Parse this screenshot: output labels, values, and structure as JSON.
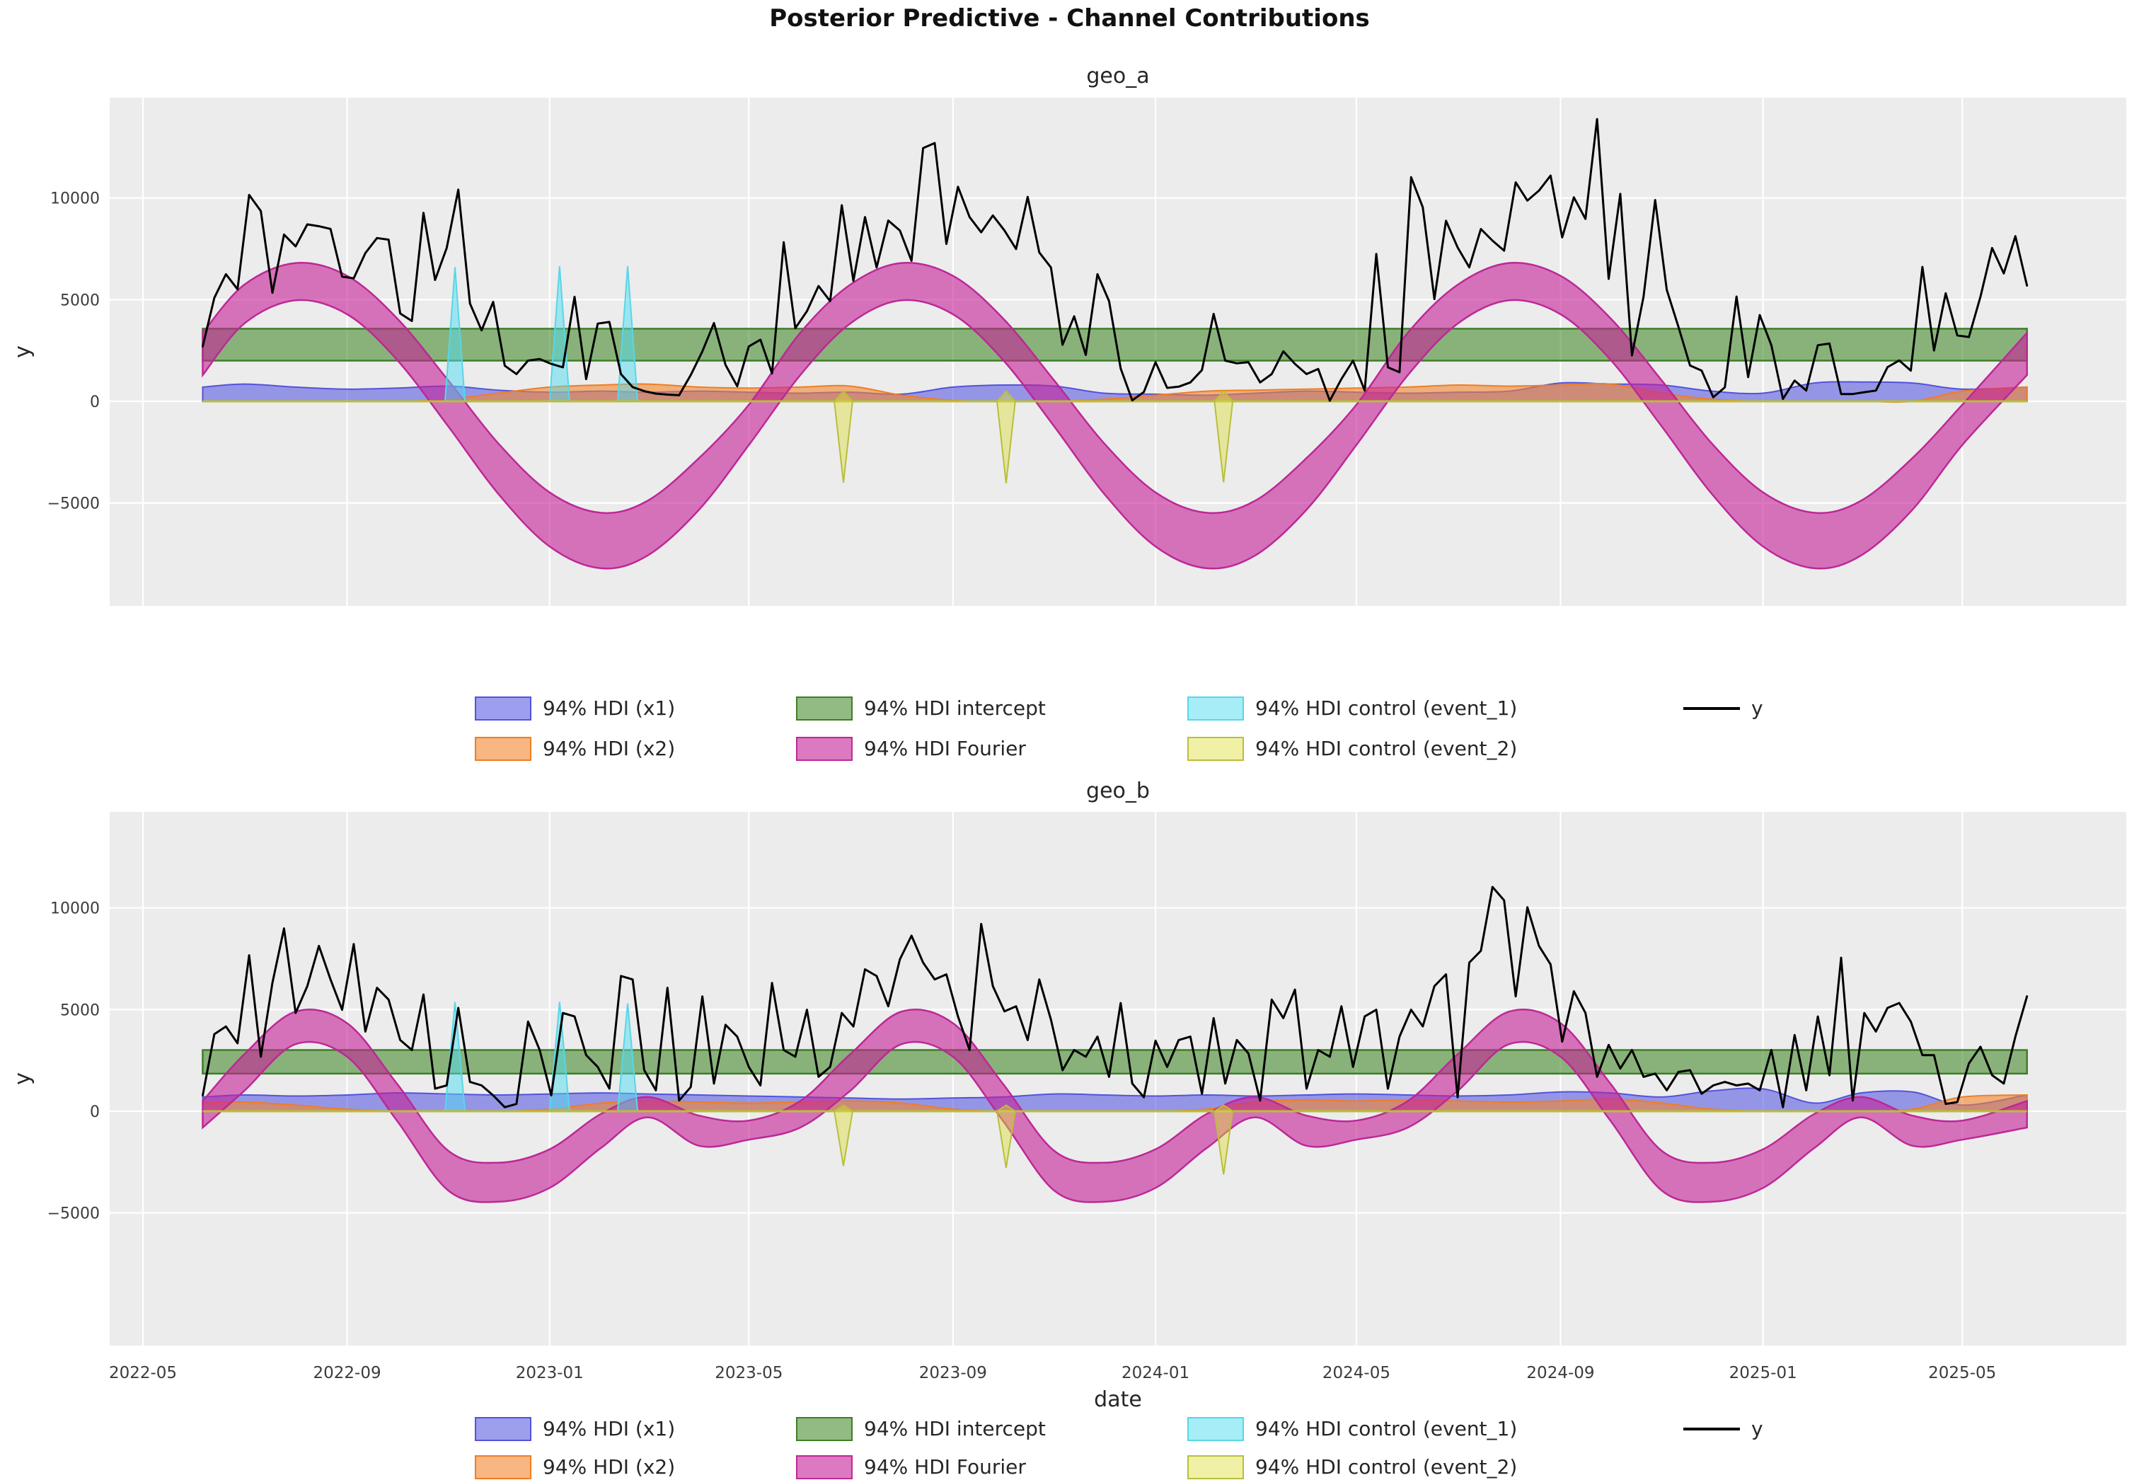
{
  "figure": {
    "title": "Posterior Predictive - Channel Contributions"
  },
  "colors": {
    "plot_bg": "#ececec",
    "grid": "#ffffff",
    "y_line": "#000000",
    "x1_fill": "rgba(62,62,224,0.5)",
    "x1_edge": "#5353dc",
    "x2_fill": "rgba(243,134,46,0.6)",
    "x2_edge": "#ef7e22",
    "intercept_fill": "rgba(56,132,30,0.55)",
    "intercept_edge": "#3f7d28",
    "fourier_fill": "rgba(199,32,152,0.6)",
    "fourier_edge": "#bc2896",
    "event1_fill": "rgba(80,220,240,0.5)",
    "event1_edge": "#57d7e8",
    "event2_fill": "rgba(222,222,60,0.45)",
    "event2_edge": "#b8bf3a"
  },
  "axes": {
    "x": {
      "label": "date",
      "ticks": [
        "2022-05",
        "2022-09",
        "2023-01",
        "2023-05",
        "2023-09",
        "2024-01",
        "2024-05",
        "2024-09",
        "2025-01",
        "2025-05"
      ]
    },
    "y": {
      "label": "y",
      "ticks": [
        10000,
        5000,
        0,
        -5000
      ]
    }
  },
  "months": [
    "2022-06-01",
    "2022-07-01",
    "2022-08-01",
    "2022-09-01",
    "2022-10-01",
    "2022-11-01",
    "2022-12-01",
    "2023-01-01",
    "2023-02-01",
    "2023-03-01",
    "2023-04-01",
    "2023-05-01",
    "2023-06-01",
    "2023-07-01",
    "2023-08-01",
    "2023-09-01",
    "2023-10-01",
    "2023-11-01",
    "2023-12-01",
    "2024-01-01",
    "2024-02-01",
    "2024-03-01",
    "2024-04-01",
    "2024-05-01",
    "2024-06-01",
    "2024-07-01",
    "2024-08-01",
    "2024-09-01",
    "2024-10-01",
    "2024-11-01",
    "2024-12-01",
    "2025-01-01",
    "2025-02-01",
    "2025-03-01",
    "2025-04-01",
    "2025-05-01",
    "2025-06-01"
  ],
  "legend": {
    "rows": [
      [
        {
          "key": "x1",
          "label": "94% HDI (x1)"
        },
        {
          "key": "intercept",
          "label": "94% HDI intercept"
        },
        {
          "key": "event1",
          "label": "94% HDI control (event_1)"
        },
        {
          "key": "y",
          "label": "y",
          "type": "line"
        }
      ],
      [
        {
          "key": "x2",
          "label": "94% HDI (x2)"
        },
        {
          "key": "fourier",
          "label": "94% HDI Fourier"
        },
        {
          "key": "event2",
          "label": "94% HDI control (event_2)"
        }
      ]
    ]
  },
  "chart_data": [
    {
      "name": "geo_a",
      "type": "line",
      "ylabel": "y",
      "yticks": [
        10000,
        5000,
        0,
        -5000
      ],
      "ylim": [
        -10070,
        14950
      ],
      "y_series": {
        "label": "y",
        "start": "2022-06-06",
        "step_days": 7,
        "values": [
          2700,
          5090,
          6250,
          5510,
          10150,
          9360,
          5340,
          8200,
          7620,
          8700,
          8610,
          8480,
          6130,
          6050,
          7290,
          8030,
          7950,
          4320,
          3950,
          9270,
          5970,
          7540,
          10410,
          4810,
          3490,
          4890,
          1750,
          1340,
          2000,
          2080,
          1840,
          1670,
          5140,
          1090,
          3820,
          3900,
          1340,
          700,
          500,
          380,
          330,
          300,
          1290,
          2450,
          3850,
          1790,
          740,
          2700,
          3030,
          1370,
          7820,
          3600,
          4430,
          5670,
          4930,
          9640,
          5920,
          9060,
          6580,
          8890,
          8400,
          6910,
          12450,
          12700,
          7740,
          10550,
          9060,
          8310,
          9140,
          8400,
          7490,
          10050,
          7320,
          6580,
          2780,
          4180,
          2280,
          6250,
          4930,
          1620,
          50,
          460,
          1920,
          660,
          720,
          930,
          1540,
          4300,
          2000,
          1870,
          1920,
          930,
          1340,
          2460,
          1840,
          1340,
          1590,
          30,
          1100,
          2000,
          530,
          7250,
          1670,
          1430,
          11020,
          9540,
          5030,
          8880,
          7570,
          6590,
          8470,
          7900,
          7410,
          10770,
          9870,
          10360,
          11100,
          8060,
          10030,
          8970,
          13880,
          6020,
          10200,
          2260,
          5150,
          9900,
          5480,
          3660,
          1760,
          1510,
          200,
          690,
          5150,
          1190,
          4240,
          2760,
          120,
          1020,
          530,
          2760,
          2840,
          360,
          360,
          450,
          530,
          1680,
          2010,
          1510,
          6610,
          2500,
          5310,
          3240,
          3160,
          5150,
          7540,
          6290,
          8120,
          5690
        ]
      },
      "bands": {
        "intercept": {
          "label": "94% HDI intercept",
          "lo": 2000,
          "hi": 3570
        },
        "fourier": {
          "label": "94% HDI Fourier",
          "hi": [
            3370,
            5730,
            6800,
            6170,
            4090,
            1020,
            -2060,
            -4480,
            -5480,
            -4890,
            -2790,
            -170,
            3370,
            5730,
            6800,
            6170,
            4090,
            1020,
            -2060,
            -4480,
            -5480,
            -4890,
            -2790,
            -170,
            3370,
            5730,
            6800,
            6170,
            4090,
            1020,
            -2060,
            -4480,
            -5480,
            -4890,
            -2790,
            -170,
            3370
          ],
          "lo": [
            1290,
            3820,
            4970,
            4280,
            2050,
            -1240,
            -4540,
            -7140,
            -8210,
            -7580,
            -5330,
            -2150,
            1290,
            3820,
            4970,
            4280,
            2050,
            -1240,
            -4540,
            -7140,
            -8210,
            -7580,
            -5330,
            -2150,
            1290,
            3820,
            4970,
            4280,
            2050,
            -1240,
            -4540,
            -7140,
            -8210,
            -7580,
            -5330,
            -2150,
            1290
          ]
        },
        "x1": {
          "label": "94% HDI (x1)",
          "hi": [
            700,
            850,
            700,
            600,
            650,
            750,
            550,
            450,
            500,
            450,
            500,
            450,
            400,
            450,
            350,
            700,
            800,
            750,
            400,
            350,
            300,
            400,
            500,
            450,
            400,
            450,
            500,
            900,
            850,
            800,
            500,
            400,
            900,
            950,
            900,
            600,
            700
          ]
        },
        "x2": {
          "label": "94% HDI (x2)",
          "hi": [
            0,
            0,
            0,
            0,
            0,
            100,
            400,
            700,
            800,
            850,
            700,
            650,
            700,
            750,
            300,
            50,
            0,
            0,
            100,
            300,
            500,
            550,
            600,
            650,
            700,
            800,
            750,
            800,
            850,
            400,
            100,
            0,
            0,
            0,
            0,
            500,
            700
          ]
        }
      },
      "events": {
        "event_1": {
          "label": "94% HDI control (event_1)",
          "spikes": [
            {
              "date": "2022-11-05",
              "peak": 6600
            },
            {
              "date": "2023-01-07",
              "peak": 6650
            },
            {
              "date": "2023-02-17",
              "peak": 6650
            }
          ]
        },
        "event_2": {
          "label": "94% HDI control (event_2)",
          "cap": 500,
          "spikes": [
            {
              "date": "2023-06-27",
              "peak": -4000
            },
            {
              "date": "2023-10-03",
              "peak": -4030
            },
            {
              "date": "2024-02-11",
              "peak": -3980
            }
          ]
        }
      }
    },
    {
      "name": "geo_b",
      "type": "line",
      "ylabel": "y",
      "yticks": [
        10000,
        5000,
        0,
        -5000
      ],
      "ylim": [
        -11530,
        14740
      ],
      "y_series": {
        "label": "y",
        "start": "2022-06-06",
        "step_days": 7,
        "values": [
          780,
          3790,
          4170,
          3340,
          7670,
          2680,
          6310,
          8990,
          4830,
          6150,
          8130,
          6480,
          4990,
          8220,
          3920,
          6070,
          5490,
          3500,
          3010,
          5740,
          1110,
          1270,
          5080,
          1440,
          1270,
          780,
          200,
          360,
          4410,
          3010,
          780,
          4830,
          4660,
          2760,
          2180,
          1110,
          6650,
          6480,
          2020,
          1030,
          6070,
          530,
          1190,
          5650,
          1360,
          4250,
          3670,
          2180,
          1270,
          6310,
          3010,
          2680,
          4990,
          1690,
          2180,
          4830,
          4170,
          6980,
          6650,
          5160,
          7470,
          8630,
          7310,
          6480,
          6730,
          4660,
          3010,
          9210,
          6150,
          4910,
          5160,
          3500,
          6480,
          4500,
          2020,
          3010,
          2680,
          3670,
          1690,
          5320,
          1360,
          690,
          3470,
          2180,
          3500,
          3670,
          860,
          4580,
          1360,
          3500,
          2840,
          530,
          5490,
          4580,
          5980,
          1110,
          3010,
          2680,
          5160,
          2180,
          4660,
          4990,
          1110,
          3670,
          4990,
          4170,
          6150,
          6730,
          690,
          7310,
          7890,
          11030,
          10370,
          5650,
          10030,
          8130,
          7220,
          3420,
          5900,
          4830,
          1690,
          3260,
          2100,
          3010,
          1690,
          1850,
          1030,
          1930,
          2020,
          860,
          1270,
          1440,
          1270,
          1360,
          1030,
          3010,
          200,
          3750,
          1030,
          4660,
          1770,
          7550,
          530,
          4830,
          3920,
          5080,
          5320,
          4410,
          2760,
          2760,
          360,
          450,
          2350,
          3170,
          1770,
          1360,
          3670,
          5650
        ]
      },
      "bands": {
        "intercept": {
          "label": "94% HDI intercept",
          "lo": 1850,
          "hi": 3010
        },
        "fourier": {
          "label": "94% HDI Fourier",
          "hi": [
            500,
            2800,
            4900,
            4330,
            1360,
            -1950,
            -2530,
            -1870,
            -130,
            700,
            -215,
            -460,
            500,
            2800,
            4900,
            4330,
            1360,
            -1950,
            -2530,
            -1870,
            -130,
            700,
            -215,
            -460,
            500,
            2800,
            4900,
            4330,
            1360,
            -1950,
            -2530,
            -1870,
            -130,
            700,
            -215,
            -460,
            500
          ],
          "lo": [
            -800,
            1000,
            3300,
            2680,
            -460,
            -3900,
            -4450,
            -3770,
            -1800,
            -300,
            -1700,
            -1400,
            -800,
            1000,
            3300,
            2680,
            -460,
            -3900,
            -4450,
            -3770,
            -1800,
            -300,
            -1700,
            -1400,
            -800,
            1000,
            3300,
            2680,
            -460,
            -3900,
            -4450,
            -3770,
            -1800,
            -300,
            -1700,
            -1400,
            -800
          ]
        },
        "x1": {
          "label": "94% HDI (x1)",
          "hi": [
            700,
            800,
            750,
            800,
            900,
            850,
            800,
            850,
            900,
            850,
            800,
            750,
            700,
            650,
            600,
            650,
            700,
            850,
            800,
            750,
            800,
            750,
            800,
            850,
            800,
            750,
            800,
            950,
            900,
            700,
            1000,
            1100,
            400,
            900,
            950,
            300,
            800
          ]
        },
        "x2": {
          "label": "94% HDI (x2)",
          "hi": [
            400,
            450,
            300,
            100,
            0,
            0,
            0,
            100,
            400,
            500,
            450,
            400,
            450,
            500,
            400,
            100,
            0,
            0,
            0,
            0,
            100,
            450,
            550,
            500,
            550,
            500,
            450,
            500,
            600,
            400,
            100,
            0,
            0,
            0,
            100,
            700,
            800
          ]
        }
      },
      "events": {
        "event_1": {
          "label": "94% HDI control (event_1)",
          "spikes": [
            {
              "date": "2022-11-05",
              "peak": 5370
            },
            {
              "date": "2023-01-07",
              "peak": 5380
            },
            {
              "date": "2023-02-17",
              "peak": 5300
            }
          ]
        },
        "event_2": {
          "label": "94% HDI control (event_2)",
          "cap": 300,
          "spikes": [
            {
              "date": "2023-06-27",
              "peak": -2690
            },
            {
              "date": "2023-10-03",
              "peak": -2780
            },
            {
              "date": "2024-02-11",
              "peak": -3110
            }
          ]
        }
      }
    }
  ]
}
